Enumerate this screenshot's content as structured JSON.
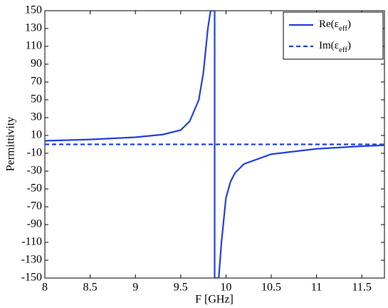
{
  "chart_data": {
    "type": "line",
    "xlabel": "F [GHz]",
    "ylabel": "Permittivity",
    "xlim": [
      8,
      11.75
    ],
    "xticks": [
      8,
      8.5,
      9,
      9.5,
      10,
      10.5,
      11,
      11.5
    ],
    "ylim": [
      -150,
      150
    ],
    "yticks": [
      -150,
      -130,
      -110,
      -90,
      -70,
      -50,
      -30,
      -10,
      10,
      30,
      50,
      70,
      90,
      110,
      130,
      150
    ],
    "legend": "upper right",
    "series": [
      {
        "name": "Re(ε",
        "name_sub": "eff",
        "name_end": ")",
        "color": "#2340e0",
        "dash": false,
        "x": [
          8,
          8.5,
          9,
          9.3,
          9.5,
          9.6,
          9.7,
          9.75,
          9.8,
          9.83,
          9.875,
          9.875,
          9.92,
          9.95,
          10,
          10.05,
          10.1,
          10.2,
          10.5,
          11,
          11.5,
          11.75
        ],
        "values": [
          4,
          5.5,
          8,
          11,
          16,
          26,
          50,
          80,
          130,
          150,
          150,
          -150,
          -150,
          -110,
          -60,
          -42,
          -32,
          -22,
          -11,
          -5,
          -2,
          -1
        ]
      },
      {
        "name": "Im(ε",
        "name_sub": "eff",
        "name_end": ")",
        "color": "#2340e0",
        "dash": true,
        "x": [
          8,
          11.75
        ],
        "values": [
          0,
          0
        ]
      }
    ]
  }
}
